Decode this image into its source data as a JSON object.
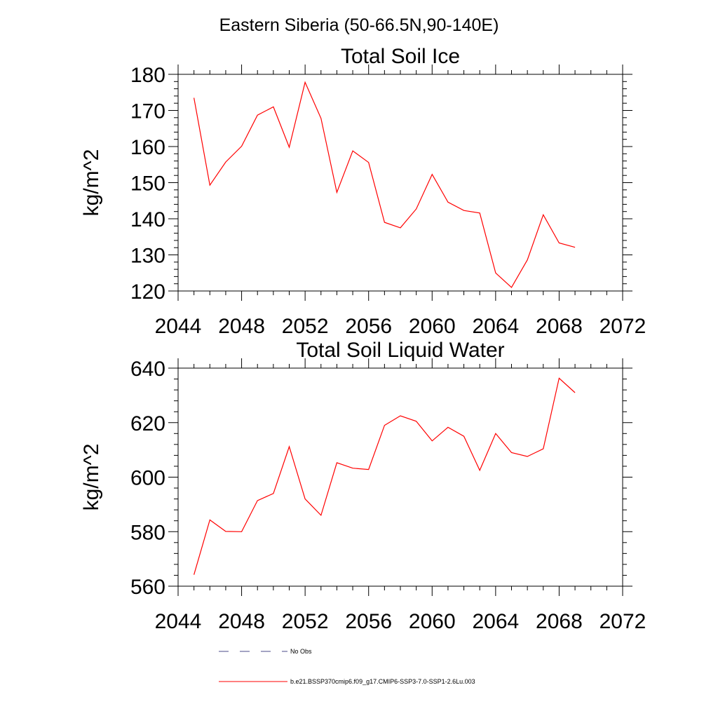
{
  "figure": {
    "title": "Eastern Siberia (50-66.5N,90-140E)"
  },
  "chart_data": [
    {
      "type": "line",
      "title": "Total Soil Ice",
      "xlabel": "",
      "ylabel": "kg/m^2",
      "xlim": [
        2044,
        2072
      ],
      "ylim": [
        120,
        180
      ],
      "xticks": [
        "2044",
        "2048",
        "2052",
        "2056",
        "2060",
        "2064",
        "2068",
        "2072"
      ],
      "yticks": [
        "120",
        "130",
        "140",
        "150",
        "160",
        "170",
        "180"
      ],
      "grid": false,
      "series": [
        {
          "name": "b.e21.BSSP370cmip6.f09_g17.CMIP6-SSP3-7.0-SSP1-2.6Lu.003",
          "color": "#ff0000",
          "x": [
            2045,
            2046,
            2047,
            2048,
            2049,
            2050,
            2051,
            2052,
            2053,
            2054,
            2055,
            2056,
            2057,
            2058,
            2059,
            2060,
            2061,
            2062,
            2063,
            2064,
            2065,
            2066,
            2067,
            2068,
            2069
          ],
          "y": [
            173.5,
            149.3,
            155.7,
            160.1,
            168.7,
            171.0,
            159.8,
            177.8,
            167.8,
            147.3,
            158.8,
            155.6,
            139.0,
            137.5,
            142.7,
            152.3,
            144.6,
            142.3,
            141.6,
            125.0,
            121.0,
            128.6,
            141.1,
            133.3,
            132.1
          ]
        }
      ]
    },
    {
      "type": "line",
      "title": "Total Soil Liquid Water",
      "xlabel": "",
      "ylabel": "kg/m^2",
      "xlim": [
        2044,
        2072
      ],
      "ylim": [
        560,
        640
      ],
      "xticks": [
        "2044",
        "2048",
        "2052",
        "2056",
        "2060",
        "2064",
        "2068",
        "2072"
      ],
      "yticks": [
        "560",
        "580",
        "600",
        "620",
        "640"
      ],
      "grid": false,
      "series": [
        {
          "name": "b.e21.BSSP370cmip6.f09_g17.CMIP6-SSP3-7.0-SSP1-2.6Lu.003",
          "color": "#ff0000",
          "x": [
            2045,
            2046,
            2047,
            2048,
            2049,
            2050,
            2051,
            2052,
            2053,
            2054,
            2055,
            2056,
            2057,
            2058,
            2059,
            2060,
            2061,
            2062,
            2063,
            2064,
            2065,
            2066,
            2067,
            2068,
            2069
          ],
          "y": [
            564.2,
            584.3,
            580.1,
            580.0,
            591.4,
            594.0,
            611.2,
            592.0,
            586.0,
            605.3,
            603.3,
            602.8,
            619.0,
            622.5,
            620.5,
            613.3,
            618.3,
            615.0,
            602.5,
            616.0,
            609.0,
            607.6,
            610.4,
            636.3,
            631.0
          ]
        }
      ]
    }
  ],
  "legend": {
    "items": [
      {
        "label": "No Obs",
        "style": "dashed",
        "color": "#4a4a8a"
      },
      {
        "label": "b.e21.BSSP370cmip6.f09_g17.CMIP6-SSP3-7.0-SSP1-2.6Lu.003",
        "style": "solid",
        "color": "#ff0000"
      }
    ]
  }
}
